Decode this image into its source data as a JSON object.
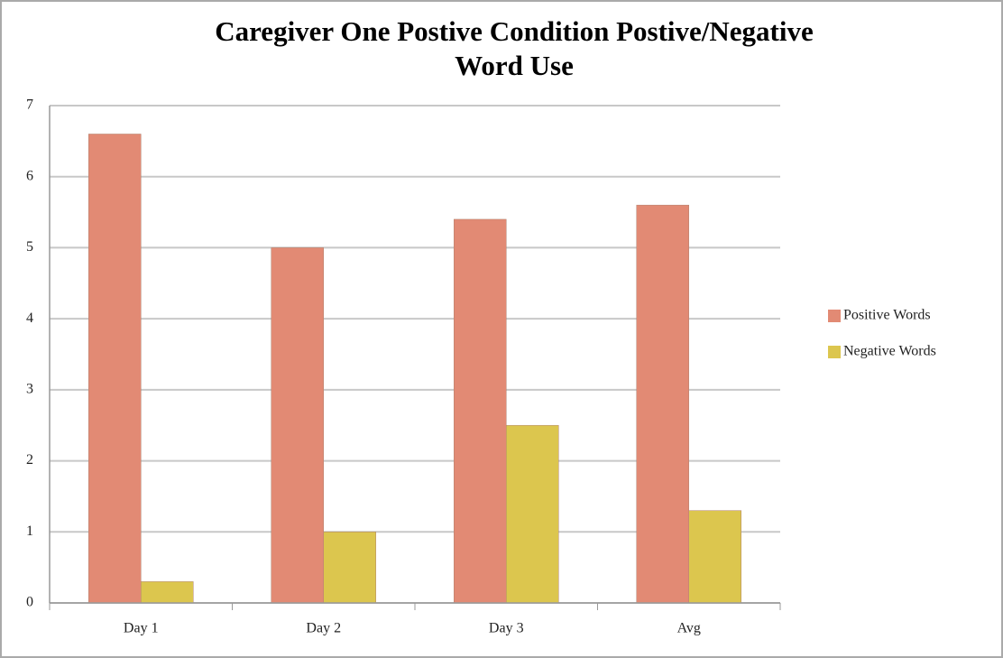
{
  "chart_data": {
    "type": "bar",
    "title": "Caregiver One Postive Condition Postive/Negative",
    "subtitle": "Word Use",
    "categories": [
      "Day 1",
      "Day 2",
      "Day 3",
      "Avg"
    ],
    "series": [
      {
        "name": "Positive Words",
        "color": "#e28a74",
        "values": [
          6.6,
          5.0,
          5.4,
          5.6
        ]
      },
      {
        "name": "Negative Words",
        "color": "#dcc64e",
        "values": [
          0.3,
          1.0,
          2.5,
          1.3
        ]
      }
    ],
    "ylim": [
      0,
      7
    ],
    "yticks": [
      0,
      1,
      2,
      3,
      4,
      5,
      6,
      7
    ],
    "grid": true,
    "legend": "right"
  }
}
